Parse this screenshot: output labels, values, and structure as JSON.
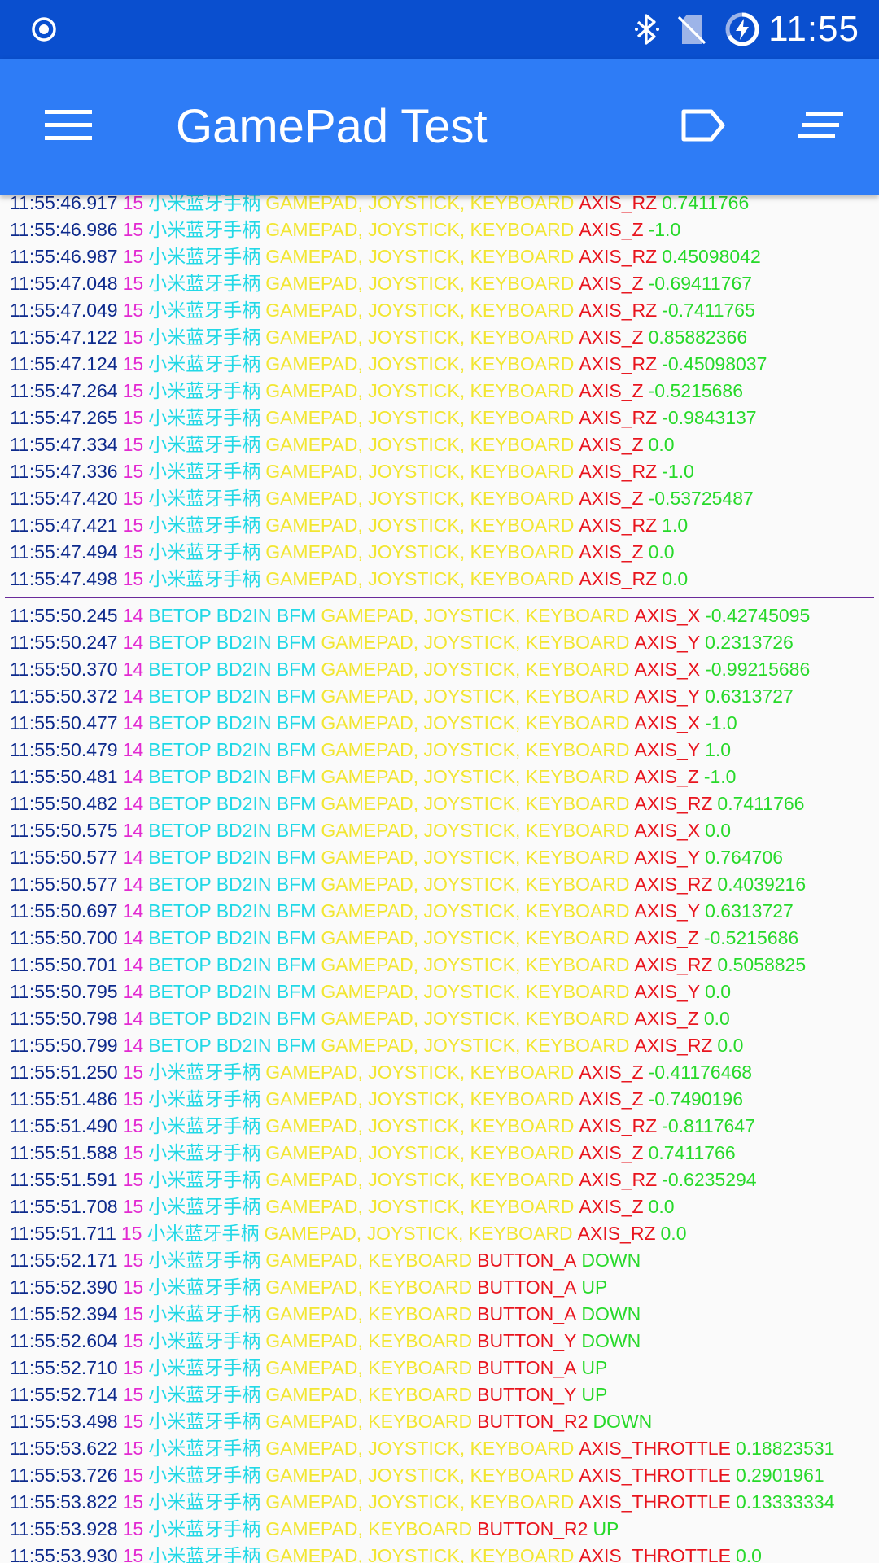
{
  "status_bar": {
    "time": "11:55",
    "left_icon": "record-icon",
    "right_icons": [
      "bluetooth-icon",
      "no-sim-icon",
      "battery-charging-icon"
    ]
  },
  "app_bar": {
    "title": "GamePad Test",
    "menu_icon": "menu-icon",
    "actions": [
      "label-icon",
      "sort-icon"
    ]
  },
  "log": {
    "groups": [
      [
        {
          "ts": "11:55:46.917",
          "id": "15",
          "dev": "小米蓝牙手柄",
          "src": "GAMEPAD, JOYSTICK, KEYBOARD",
          "code": "AXIS_RZ",
          "val": "0.7411766"
        },
        {
          "ts": "11:55:46.986",
          "id": "15",
          "dev": "小米蓝牙手柄",
          "src": "GAMEPAD, JOYSTICK, KEYBOARD",
          "code": "AXIS_Z",
          "val": "-1.0"
        },
        {
          "ts": "11:55:46.987",
          "id": "15",
          "dev": "小米蓝牙手柄",
          "src": "GAMEPAD, JOYSTICK, KEYBOARD",
          "code": "AXIS_RZ",
          "val": "0.45098042"
        },
        {
          "ts": "11:55:47.048",
          "id": "15",
          "dev": "小米蓝牙手柄",
          "src": "GAMEPAD, JOYSTICK, KEYBOARD",
          "code": "AXIS_Z",
          "val": "-0.69411767"
        },
        {
          "ts": "11:55:47.049",
          "id": "15",
          "dev": "小米蓝牙手柄",
          "src": "GAMEPAD, JOYSTICK, KEYBOARD",
          "code": "AXIS_RZ",
          "val": "-0.7411765"
        },
        {
          "ts": "11:55:47.122",
          "id": "15",
          "dev": "小米蓝牙手柄",
          "src": "GAMEPAD, JOYSTICK, KEYBOARD",
          "code": "AXIS_Z",
          "val": "0.85882366"
        },
        {
          "ts": "11:55:47.124",
          "id": "15",
          "dev": "小米蓝牙手柄",
          "src": "GAMEPAD, JOYSTICK, KEYBOARD",
          "code": "AXIS_RZ",
          "val": "-0.45098037"
        },
        {
          "ts": "11:55:47.264",
          "id": "15",
          "dev": "小米蓝牙手柄",
          "src": "GAMEPAD, JOYSTICK, KEYBOARD",
          "code": "AXIS_Z",
          "val": "-0.5215686"
        },
        {
          "ts": "11:55:47.265",
          "id": "15",
          "dev": "小米蓝牙手柄",
          "src": "GAMEPAD, JOYSTICK, KEYBOARD",
          "code": "AXIS_RZ",
          "val": "-0.9843137"
        },
        {
          "ts": "11:55:47.334",
          "id": "15",
          "dev": "小米蓝牙手柄",
          "src": "GAMEPAD, JOYSTICK, KEYBOARD",
          "code": "AXIS_Z",
          "val": "0.0"
        },
        {
          "ts": "11:55:47.336",
          "id": "15",
          "dev": "小米蓝牙手柄",
          "src": "GAMEPAD, JOYSTICK, KEYBOARD",
          "code": "AXIS_RZ",
          "val": "-1.0"
        },
        {
          "ts": "11:55:47.420",
          "id": "15",
          "dev": "小米蓝牙手柄",
          "src": "GAMEPAD, JOYSTICK, KEYBOARD",
          "code": "AXIS_Z",
          "val": "-0.53725487"
        },
        {
          "ts": "11:55:47.421",
          "id": "15",
          "dev": "小米蓝牙手柄",
          "src": "GAMEPAD, JOYSTICK, KEYBOARD",
          "code": "AXIS_RZ",
          "val": "1.0"
        },
        {
          "ts": "11:55:47.494",
          "id": "15",
          "dev": "小米蓝牙手柄",
          "src": "GAMEPAD, JOYSTICK, KEYBOARD",
          "code": "AXIS_Z",
          "val": "0.0"
        },
        {
          "ts": "11:55:47.498",
          "id": "15",
          "dev": "小米蓝牙手柄",
          "src": "GAMEPAD, JOYSTICK, KEYBOARD",
          "code": "AXIS_RZ",
          "val": "0.0"
        }
      ],
      [
        {
          "ts": "11:55:50.245",
          "id": "14",
          "dev": "BETOP BD2IN BFM",
          "src": "GAMEPAD, JOYSTICK, KEYBOARD",
          "code": "AXIS_X",
          "val": "-0.42745095"
        },
        {
          "ts": "11:55:50.247",
          "id": "14",
          "dev": "BETOP BD2IN BFM",
          "src": "GAMEPAD, JOYSTICK, KEYBOARD",
          "code": "AXIS_Y",
          "val": "0.2313726"
        },
        {
          "ts": "11:55:50.370",
          "id": "14",
          "dev": "BETOP BD2IN BFM",
          "src": "GAMEPAD, JOYSTICK, KEYBOARD",
          "code": "AXIS_X",
          "val": "-0.99215686"
        },
        {
          "ts": "11:55:50.372",
          "id": "14",
          "dev": "BETOP BD2IN BFM",
          "src": "GAMEPAD, JOYSTICK, KEYBOARD",
          "code": "AXIS_Y",
          "val": "0.6313727"
        },
        {
          "ts": "11:55:50.477",
          "id": "14",
          "dev": "BETOP BD2IN BFM",
          "src": "GAMEPAD, JOYSTICK, KEYBOARD",
          "code": "AXIS_X",
          "val": "-1.0"
        },
        {
          "ts": "11:55:50.479",
          "id": "14",
          "dev": "BETOP BD2IN BFM",
          "src": "GAMEPAD, JOYSTICK, KEYBOARD",
          "code": "AXIS_Y",
          "val": "1.0"
        },
        {
          "ts": "11:55:50.481",
          "id": "14",
          "dev": "BETOP BD2IN BFM",
          "src": "GAMEPAD, JOYSTICK, KEYBOARD",
          "code": "AXIS_Z",
          "val": "-1.0"
        },
        {
          "ts": "11:55:50.482",
          "id": "14",
          "dev": "BETOP BD2IN BFM",
          "src": "GAMEPAD, JOYSTICK, KEYBOARD",
          "code": "AXIS_RZ",
          "val": "0.7411766"
        },
        {
          "ts": "11:55:50.575",
          "id": "14",
          "dev": "BETOP BD2IN BFM",
          "src": "GAMEPAD, JOYSTICK, KEYBOARD",
          "code": "AXIS_X",
          "val": "0.0"
        },
        {
          "ts": "11:55:50.577",
          "id": "14",
          "dev": "BETOP BD2IN BFM",
          "src": "GAMEPAD, JOYSTICK, KEYBOARD",
          "code": "AXIS_Y",
          "val": "0.764706"
        },
        {
          "ts": "11:55:50.577",
          "id": "14",
          "dev": "BETOP BD2IN BFM",
          "src": "GAMEPAD, JOYSTICK, KEYBOARD",
          "code": "AXIS_RZ",
          "val": "0.4039216"
        },
        {
          "ts": "11:55:50.697",
          "id": "14",
          "dev": "BETOP BD2IN BFM",
          "src": "GAMEPAD, JOYSTICK, KEYBOARD",
          "code": "AXIS_Y",
          "val": "0.6313727"
        },
        {
          "ts": "11:55:50.700",
          "id": "14",
          "dev": "BETOP BD2IN BFM",
          "src": "GAMEPAD, JOYSTICK, KEYBOARD",
          "code": "AXIS_Z",
          "val": "-0.5215686"
        },
        {
          "ts": "11:55:50.701",
          "id": "14",
          "dev": "BETOP BD2IN BFM",
          "src": "GAMEPAD, JOYSTICK, KEYBOARD",
          "code": "AXIS_RZ",
          "val": "0.5058825"
        },
        {
          "ts": "11:55:50.795",
          "id": "14",
          "dev": "BETOP BD2IN BFM",
          "src": "GAMEPAD, JOYSTICK, KEYBOARD",
          "code": "AXIS_Y",
          "val": "0.0"
        },
        {
          "ts": "11:55:50.798",
          "id": "14",
          "dev": "BETOP BD2IN BFM",
          "src": "GAMEPAD, JOYSTICK, KEYBOARD",
          "code": "AXIS_Z",
          "val": "0.0"
        },
        {
          "ts": "11:55:50.799",
          "id": "14",
          "dev": "BETOP BD2IN BFM",
          "src": "GAMEPAD, JOYSTICK, KEYBOARD",
          "code": "AXIS_RZ",
          "val": "0.0"
        },
        {
          "ts": "11:55:51.250",
          "id": "15",
          "dev": "小米蓝牙手柄",
          "src": "GAMEPAD, JOYSTICK, KEYBOARD",
          "code": "AXIS_Z",
          "val": "-0.41176468"
        },
        {
          "ts": "11:55:51.486",
          "id": "15",
          "dev": "小米蓝牙手柄",
          "src": "GAMEPAD, JOYSTICK, KEYBOARD",
          "code": "AXIS_Z",
          "val": "-0.7490196"
        },
        {
          "ts": "11:55:51.490",
          "id": "15",
          "dev": "小米蓝牙手柄",
          "src": "GAMEPAD, JOYSTICK, KEYBOARD",
          "code": "AXIS_RZ",
          "val": "-0.8117647"
        },
        {
          "ts": "11:55:51.588",
          "id": "15",
          "dev": "小米蓝牙手柄",
          "src": "GAMEPAD, JOYSTICK, KEYBOARD",
          "code": "AXIS_Z",
          "val": "0.7411766"
        },
        {
          "ts": "11:55:51.591",
          "id": "15",
          "dev": "小米蓝牙手柄",
          "src": "GAMEPAD, JOYSTICK, KEYBOARD",
          "code": "AXIS_RZ",
          "val": "-0.6235294"
        },
        {
          "ts": "11:55:51.708",
          "id": "15",
          "dev": "小米蓝牙手柄",
          "src": "GAMEPAD, JOYSTICK, KEYBOARD",
          "code": "AXIS_Z",
          "val": "0.0"
        },
        {
          "ts": "11:55:51.711",
          "id": "15",
          "dev": "小米蓝牙手柄",
          "src": "GAMEPAD, JOYSTICK, KEYBOARD",
          "code": "AXIS_RZ",
          "val": "0.0"
        },
        {
          "ts": "11:55:52.171",
          "id": "15",
          "dev": "小米蓝牙手柄",
          "src": "GAMEPAD, KEYBOARD",
          "code": "BUTTON_A",
          "val": "DOWN"
        },
        {
          "ts": "11:55:52.390",
          "id": "15",
          "dev": "小米蓝牙手柄",
          "src": "GAMEPAD, KEYBOARD",
          "code": "BUTTON_A",
          "val": "UP"
        },
        {
          "ts": "11:55:52.394",
          "id": "15",
          "dev": "小米蓝牙手柄",
          "src": "GAMEPAD, KEYBOARD",
          "code": "BUTTON_A",
          "val": "DOWN"
        },
        {
          "ts": "11:55:52.604",
          "id": "15",
          "dev": "小米蓝牙手柄",
          "src": "GAMEPAD, KEYBOARD",
          "code": "BUTTON_Y",
          "val": "DOWN"
        },
        {
          "ts": "11:55:52.710",
          "id": "15",
          "dev": "小米蓝牙手柄",
          "src": "GAMEPAD, KEYBOARD",
          "code": "BUTTON_A",
          "val": "UP"
        },
        {
          "ts": "11:55:52.714",
          "id": "15",
          "dev": "小米蓝牙手柄",
          "src": "GAMEPAD, KEYBOARD",
          "code": "BUTTON_Y",
          "val": "UP"
        },
        {
          "ts": "11:55:53.498",
          "id": "15",
          "dev": "小米蓝牙手柄",
          "src": "GAMEPAD, KEYBOARD",
          "code": "BUTTON_R2",
          "val": "DOWN"
        },
        {
          "ts": "11:55:53.622",
          "id": "15",
          "dev": "小米蓝牙手柄",
          "src": "GAMEPAD, JOYSTICK, KEYBOARD",
          "code": "AXIS_THROTTLE",
          "val": "0.18823531"
        },
        {
          "ts": "11:55:53.726",
          "id": "15",
          "dev": "小米蓝牙手柄",
          "src": "GAMEPAD, JOYSTICK, KEYBOARD",
          "code": "AXIS_THROTTLE",
          "val": "0.2901961"
        },
        {
          "ts": "11:55:53.822",
          "id": "15",
          "dev": "小米蓝牙手柄",
          "src": "GAMEPAD, JOYSTICK, KEYBOARD",
          "code": "AXIS_THROTTLE",
          "val": "0.13333334"
        },
        {
          "ts": "11:55:53.928",
          "id": "15",
          "dev": "小米蓝牙手柄",
          "src": "GAMEPAD, KEYBOARD",
          "code": "BUTTON_R2",
          "val": "UP"
        },
        {
          "ts": "11:55:53.930",
          "id": "15",
          "dev": "小米蓝牙手柄",
          "src": "GAMEPAD, JOYSTICK, KEYBOARD",
          "code": "AXIS_THROTTLE",
          "val": "0.0"
        }
      ]
    ]
  }
}
